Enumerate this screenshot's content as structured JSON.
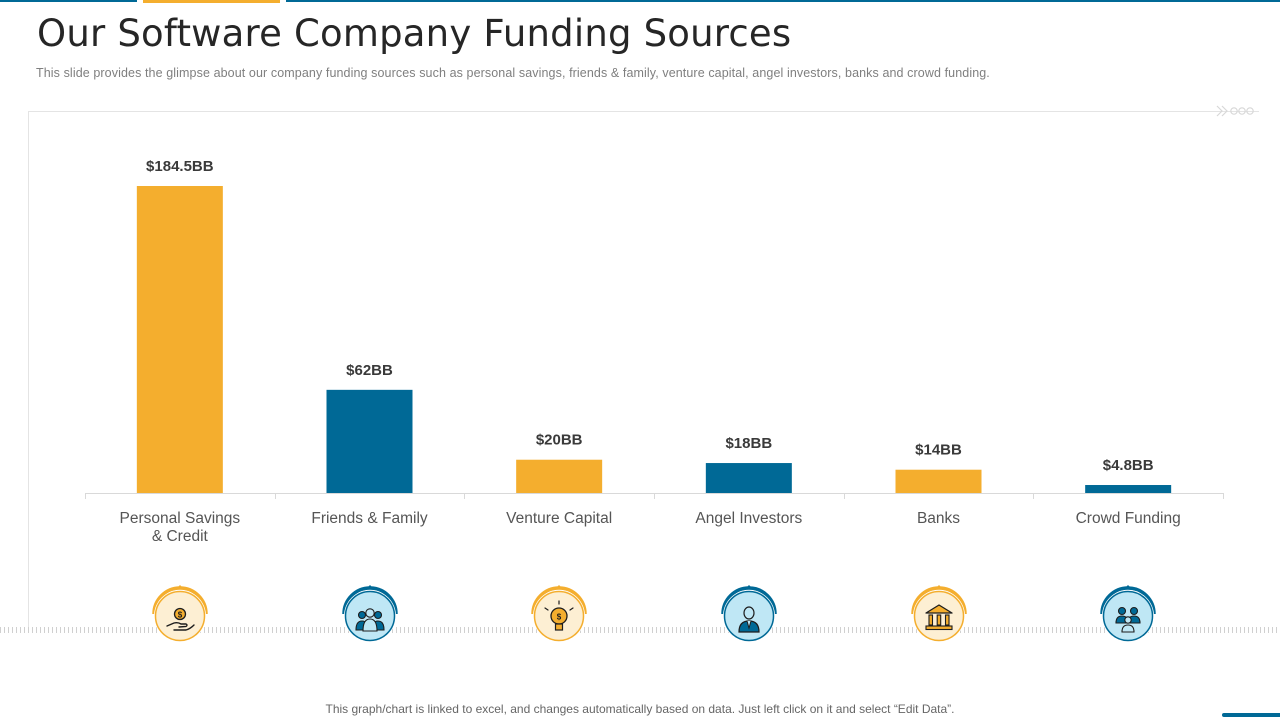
{
  "header": {
    "title": "Our Software Company Funding Sources",
    "subtitle": "This slide provides  the glimpse about our company funding sources such as personal savings, friends  & family,  venture  capital,  angel investors,  banks and crowd funding."
  },
  "chart_data": {
    "type": "bar",
    "title": "",
    "xlabel": "",
    "ylabel": "",
    "ylim": [
      0,
      184.5
    ],
    "categories": [
      "Personal Savings & Credit",
      "Friends & Family",
      "Venture Capital",
      "Angel Investors",
      "Banks",
      "Crowd Funding"
    ],
    "category_lines": [
      [
        "Personal Savings",
        "& Credit"
      ],
      [
        "Friends & Family"
      ],
      [
        "Venture Capital"
      ],
      [
        "Angel Investors"
      ],
      [
        "Banks"
      ],
      [
        "Crowd Funding"
      ]
    ],
    "values": [
      184.5,
      62,
      20,
      18,
      14,
      4.8
    ],
    "value_labels": [
      "$184.5BB",
      "$62BB",
      "$20BB",
      "$18BB",
      "$14BB",
      "$4.8BB"
    ],
    "unit": "BB",
    "bar_colors": [
      "#F4AE2E",
      "#006996",
      "#F4AE2E",
      "#006996",
      "#F4AE2E",
      "#006996"
    ],
    "grid": false
  },
  "icons": [
    {
      "name": "hand-coin-icon",
      "color": "#F4AE2E",
      "light": "#FDEFD3"
    },
    {
      "name": "group-icon",
      "color": "#006996",
      "light": "#BFE7F5"
    },
    {
      "name": "lightbulb-icon",
      "color": "#F4AE2E",
      "light": "#FDEFD3"
    },
    {
      "name": "investor-icon",
      "color": "#006996",
      "light": "#BFE7F5"
    },
    {
      "name": "bank-icon",
      "color": "#F4AE2E",
      "light": "#FDEFD3"
    },
    {
      "name": "crowd-icon",
      "color": "#006996",
      "light": "#BFE7F5"
    }
  ],
  "footer": {
    "note": "This graph/chart is linked to excel,  and changes automatically based on data. Just left click on it and select “Edit Data”."
  },
  "colors": {
    "accent_blue": "#006996",
    "accent_yellow": "#F4AE2E"
  }
}
